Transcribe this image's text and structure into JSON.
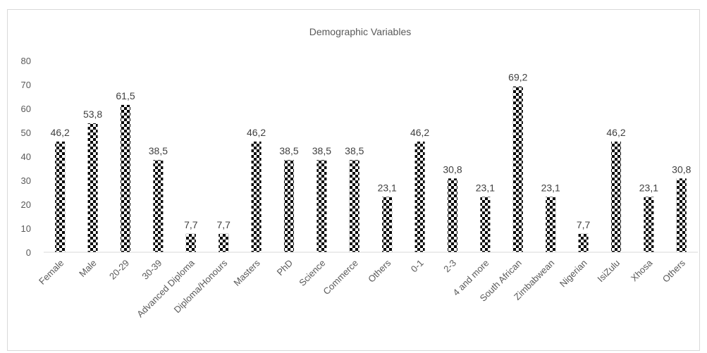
{
  "chart_data": {
    "type": "bar",
    "title": "Demographic Variables",
    "categories": [
      "Female",
      "Male",
      "20-29",
      "30-39",
      "Advanced Diploma",
      "Diploma/Honours",
      "Masters",
      "PhD",
      "Science",
      "Commerce",
      "Others",
      "0-1",
      "2-3",
      "4 and more",
      "South African",
      "Zimbabwean",
      "Nigerian",
      "IsiZulu",
      "Xhosa",
      "Others"
    ],
    "values": [
      46.2,
      53.8,
      61.5,
      38.5,
      7.7,
      7.7,
      46.2,
      38.5,
      38.5,
      38.5,
      23.1,
      46.2,
      30.8,
      23.1,
      69.2,
      23.1,
      7.7,
      46.2,
      23.1,
      30.8
    ],
    "value_labels": [
      "46,2",
      "53,8",
      "61,5",
      "38,5",
      "7,7",
      "7,7",
      "46,2",
      "38,5",
      "38,5",
      "38,5",
      "23,1",
      "46,2",
      "30,8",
      "23,1",
      "69,2",
      "23,1",
      "7,7",
      "46,2",
      "23,1",
      "30,8"
    ],
    "yticks": [
      "0",
      "10",
      "20",
      "30",
      "40",
      "50",
      "60",
      "70",
      "80"
    ],
    "ylim": [
      0,
      80
    ],
    "grid": false,
    "legend": "none",
    "bar_pattern": "black-white checkerboard",
    "colors": {
      "bar_dark": "#000000",
      "bar_light": "#ffffff",
      "axis": "#d9d9d9",
      "text": "#595959"
    }
  }
}
